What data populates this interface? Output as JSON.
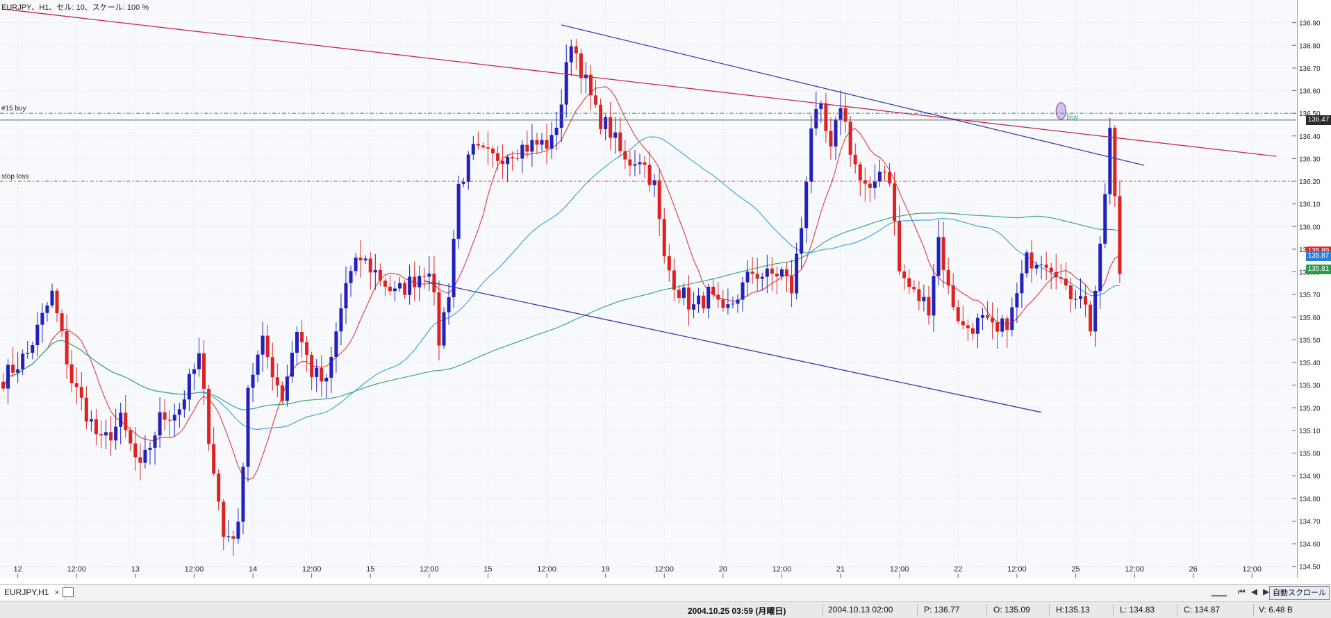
{
  "window": {
    "title": "EURJPY、H1、セル: 10、スケール: 100 %"
  },
  "chart_data": {
    "type": "candlestick",
    "symbol": "EURJPY",
    "timeframe": "H1",
    "ylim": [
      134.45,
      137.0
    ],
    "yticks": [
      "136.90",
      "136.80",
      "136.70",
      "136.60",
      "136.50",
      "136.40",
      "136.30",
      "136.20",
      "136.10",
      "136.00",
      "135.90",
      "135.80",
      "135.70",
      "135.60",
      "135.50",
      "135.40",
      "135.30",
      "135.20",
      "135.10",
      "135.00",
      "134.90",
      "134.80",
      "134.70",
      "134.60",
      "134.50"
    ],
    "xticks": [
      {
        "bar": 3,
        "label": "12"
      },
      {
        "bar": 15,
        "label": "12:00"
      },
      {
        "bar": 27,
        "label": "13"
      },
      {
        "bar": 39,
        "label": "12:00"
      },
      {
        "bar": 51,
        "label": "14"
      },
      {
        "bar": 63,
        "label": "12:00"
      },
      {
        "bar": 75,
        "label": "15"
      },
      {
        "bar": 87,
        "label": "12:00"
      },
      {
        "bar": 99,
        "label": "15"
      },
      {
        "bar": 111,
        "label": "12:00"
      },
      {
        "bar": 123,
        "label": "19"
      },
      {
        "bar": 135,
        "label": "12:00"
      },
      {
        "bar": 147,
        "label": "20"
      },
      {
        "bar": 159,
        "label": "12:00"
      },
      {
        "bar": 171,
        "label": "21"
      },
      {
        "bar": 183,
        "label": "12:00"
      },
      {
        "bar": 195,
        "label": "22"
      },
      {
        "bar": 207,
        "label": "12:00"
      },
      {
        "bar": 219,
        "label": "25"
      },
      {
        "bar": 231,
        "label": "12:00"
      },
      {
        "bar": 243,
        "label": "26"
      },
      {
        "bar": 255,
        "label": "12:00"
      }
    ],
    "anchors": [
      [
        0,
        135.33
      ],
      [
        5,
        135.44
      ],
      [
        10,
        135.7
      ],
      [
        14,
        135.32
      ],
      [
        20,
        135.04
      ],
      [
        24,
        135.14
      ],
      [
        28,
        134.92
      ],
      [
        32,
        135.15
      ],
      [
        36,
        135.2
      ],
      [
        40,
        135.42
      ],
      [
        42,
        135.08
      ],
      [
        45,
        134.63
      ],
      [
        48,
        134.66
      ],
      [
        50,
        135.3
      ],
      [
        53,
        135.48
      ],
      [
        57,
        135.25
      ],
      [
        60,
        135.55
      ],
      [
        63,
        135.36
      ],
      [
        66,
        135.3
      ],
      [
        70,
        135.75
      ],
      [
        73,
        135.86
      ],
      [
        76,
        135.8
      ],
      [
        80,
        135.7
      ],
      [
        83,
        135.75
      ],
      [
        87,
        135.83
      ],
      [
        89,
        135.5
      ],
      [
        91,
        135.72
      ],
      [
        93,
        136.18
      ],
      [
        96,
        136.33
      ],
      [
        100,
        136.3
      ],
      [
        104,
        136.34
      ],
      [
        108,
        136.36
      ],
      [
        112,
        136.37
      ],
      [
        114,
        136.55
      ],
      [
        116,
        136.83
      ],
      [
        118,
        136.7
      ],
      [
        121,
        136.5
      ],
      [
        124,
        136.42
      ],
      [
        127,
        136.28
      ],
      [
        130,
        136.31
      ],
      [
        133,
        136.18
      ],
      [
        135,
        135.85
      ],
      [
        138,
        135.72
      ],
      [
        141,
        135.64
      ],
      [
        144,
        135.7
      ],
      [
        147,
        135.6
      ],
      [
        150,
        135.7
      ],
      [
        153,
        135.8
      ],
      [
        156,
        135.78
      ],
      [
        159,
        135.8
      ],
      [
        161,
        135.72
      ],
      [
        163,
        136.0
      ],
      [
        165,
        136.45
      ],
      [
        167,
        136.5
      ],
      [
        169,
        136.32
      ],
      [
        171,
        136.55
      ],
      [
        173,
        136.35
      ],
      [
        175,
        136.2
      ],
      [
        177,
        136.13
      ],
      [
        179,
        136.27
      ],
      [
        181,
        136.22
      ],
      [
        183,
        135.8
      ],
      [
        186,
        135.7
      ],
      [
        189,
        135.65
      ],
      [
        191,
        135.95
      ],
      [
        193,
        135.72
      ],
      [
        196,
        135.55
      ],
      [
        200,
        135.58
      ],
      [
        203,
        135.52
      ],
      [
        206,
        135.62
      ],
      [
        209,
        135.85
      ],
      [
        212,
        135.87
      ],
      [
        215,
        135.82
      ],
      [
        217,
        135.7
      ],
      [
        220,
        135.72
      ],
      [
        222,
        135.56
      ],
      [
        224,
        135.88
      ],
      [
        226,
        136.42
      ],
      [
        228,
        135.8
      ]
    ],
    "moving_averages": [
      {
        "color": "#e0474c",
        "period": 10
      },
      {
        "color": "#41a6d8",
        "period": 40
      },
      {
        "color": "#3aa87c",
        "period": 120
      }
    ],
    "price_tags": [
      {
        "price": 136.47,
        "label": "136.47",
        "color": "#2a2a2a"
      },
      {
        "price": 135.89,
        "label": "135.89",
        "color": "#d62b2b"
      },
      {
        "price": 135.87,
        "label": "135.87",
        "color": "#2b7fd6"
      },
      {
        "price": 135.81,
        "label": "135.81",
        "color": "#2a9a4d"
      }
    ],
    "hlines": [
      {
        "price": 136.5,
        "label": "#15 buy",
        "color": "#2f8f70",
        "dash": "6,3,2,3"
      },
      {
        "price": 136.2,
        "label": "stop loss",
        "color": "#d64545",
        "dash": "5,3,2,3"
      },
      {
        "price": 136.47,
        "label": "",
        "color": "#556677",
        "dash": ""
      }
    ],
    "trendlines": [
      {
        "color": "#c8284a",
        "from": {
          "bar": 0,
          "price": 136.96
        },
        "to": {
          "bar": 260,
          "price": 136.31
        }
      },
      {
        "color": "#3a36b0",
        "from": {
          "bar": 114,
          "price": 136.89
        },
        "to": {
          "bar": 233,
          "price": 136.27
        }
      },
      {
        "color": "#3a36b0",
        "from": {
          "bar": 86,
          "price": 135.76
        },
        "to": {
          "bar": 212,
          "price": 135.18
        }
      }
    ],
    "buy_marker": {
      "bar": 216,
      "price": 136.51,
      "label": "Buy"
    }
  },
  "tabs": [
    {
      "label": "EURJPY,H1",
      "close": "×"
    }
  ],
  "toolbar": {
    "nav": [
      "⏮",
      "◀",
      "▶",
      "⏭"
    ],
    "autoscroll": "自動スクロール"
  },
  "status": {
    "date": "2004.10.25 03:59 (月曜日)",
    "cursor_time": "2004.10.13 02:00",
    "price": "P: 136.77",
    "open": "O: 135.09",
    "high": "H:135.13",
    "low": "L: 134.83",
    "close": "C: 134.87",
    "volume": "V: 6.48 B"
  }
}
